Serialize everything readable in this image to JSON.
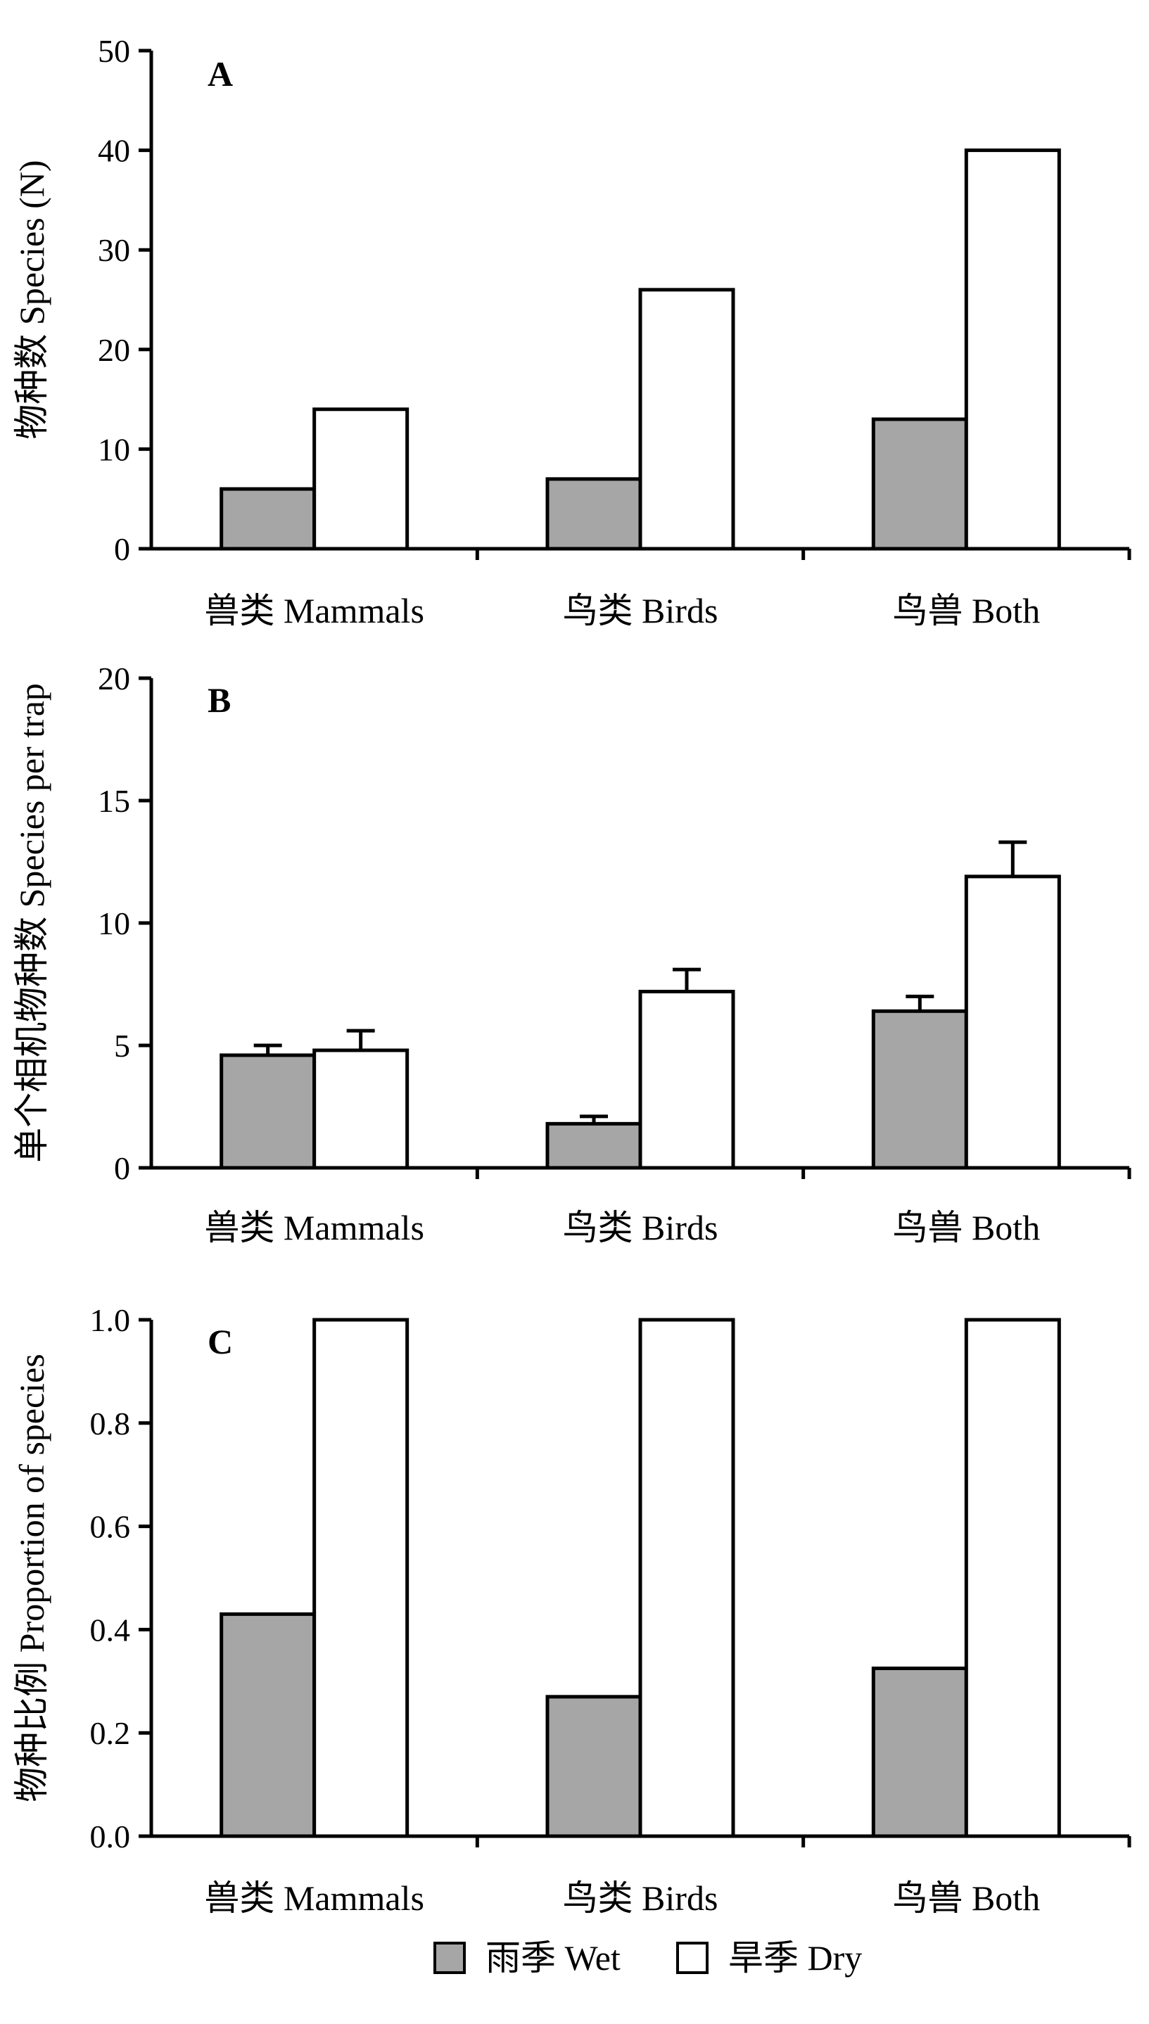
{
  "colors": {
    "wet": "#a6a6a6",
    "dry": "#ffffff",
    "stroke": "#000000"
  },
  "legend": {
    "position": "bottom-center",
    "items": [
      {
        "label": "雨季 Wet",
        "series": "wet"
      },
      {
        "label": "旱季 Dry",
        "series": "dry"
      }
    ]
  },
  "chart_data": [
    {
      "type": "bar",
      "panel": "A",
      "ylabel": "物种数 Species (N)",
      "ylim": [
        0,
        50
      ],
      "yticks": [
        0,
        10,
        20,
        30,
        40,
        50
      ],
      "categories": [
        "兽类 Mammals",
        "鸟类 Birds",
        "鸟兽 Both"
      ],
      "series": [
        {
          "name": "雨季 Wet",
          "key": "wet",
          "values": [
            6,
            7,
            13
          ]
        },
        {
          "name": "旱季 Dry",
          "key": "dry",
          "values": [
            14,
            26,
            40
          ]
        }
      ],
      "grid": false
    },
    {
      "type": "bar",
      "panel": "B",
      "ylabel": "单个相机物种数 Species per trap",
      "ylim": [
        0,
        20
      ],
      "yticks": [
        0,
        5,
        10,
        15,
        20
      ],
      "categories": [
        "兽类 Mammals",
        "鸟类 Birds",
        "鸟兽 Both"
      ],
      "series": [
        {
          "name": "雨季 Wet",
          "key": "wet",
          "values": [
            4.6,
            1.8,
            6.4
          ],
          "errors": [
            0.4,
            0.3,
            0.6
          ]
        },
        {
          "name": "旱季 Dry",
          "key": "dry",
          "values": [
            4.8,
            7.2,
            11.9
          ],
          "errors": [
            0.8,
            0.9,
            1.4
          ]
        }
      ],
      "grid": false
    },
    {
      "type": "bar",
      "panel": "C",
      "ylabel": "物种比例 Proportion of species",
      "ylim": [
        0,
        1.0
      ],
      "yticks": [
        "0.0",
        "0.2",
        "0.4",
        "0.6",
        "0.8",
        "1.0"
      ],
      "categories": [
        "兽类 Mammals",
        "鸟类 Birds",
        "鸟兽 Both"
      ],
      "series": [
        {
          "name": "雨季 Wet",
          "key": "wet",
          "values": [
            0.43,
            0.27,
            0.325
          ]
        },
        {
          "name": "旱季 Dry",
          "key": "dry",
          "values": [
            1.0,
            1.0,
            1.0
          ]
        }
      ],
      "grid": false
    }
  ]
}
